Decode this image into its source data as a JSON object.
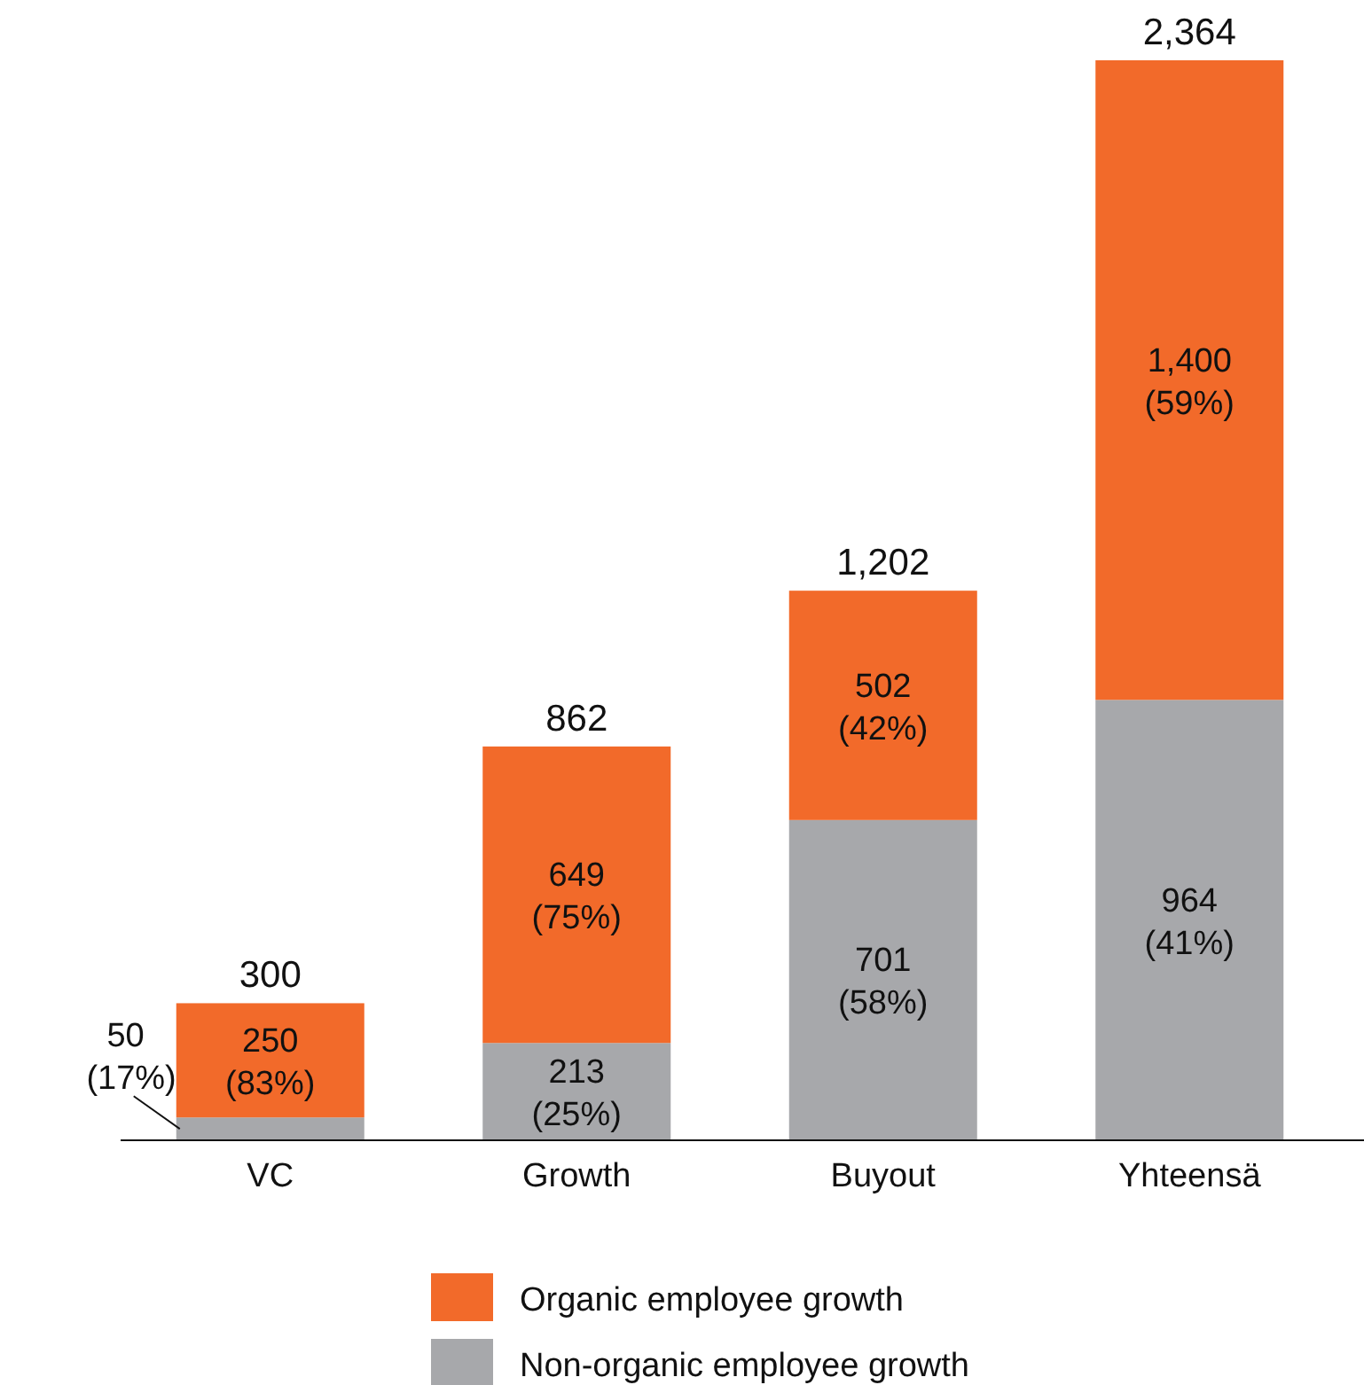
{
  "chart_data": {
    "type": "bar",
    "stacked": true,
    "categories": [
      "VC",
      "Growth",
      "Buyout",
      "Yhteensä"
    ],
    "series": [
      {
        "name": "Non-organic employee growth",
        "color": "#a7a8ab",
        "values": [
          50,
          213,
          701,
          964
        ],
        "value_labels": [
          "50 (17%)",
          "213 (25%)",
          "701 (58%)",
          "964 (41%)"
        ]
      },
      {
        "name": "Organic employee growth",
        "color": "#f26a2a",
        "values": [
          250,
          649,
          502,
          1400
        ],
        "value_labels": [
          "250 (83%)",
          "649 (75%)",
          "502 (42%)",
          "1,400 (59%)"
        ]
      }
    ],
    "totals": [
      "300",
      "862",
      "1,202",
      "2,364"
    ],
    "legend": "bottom"
  }
}
